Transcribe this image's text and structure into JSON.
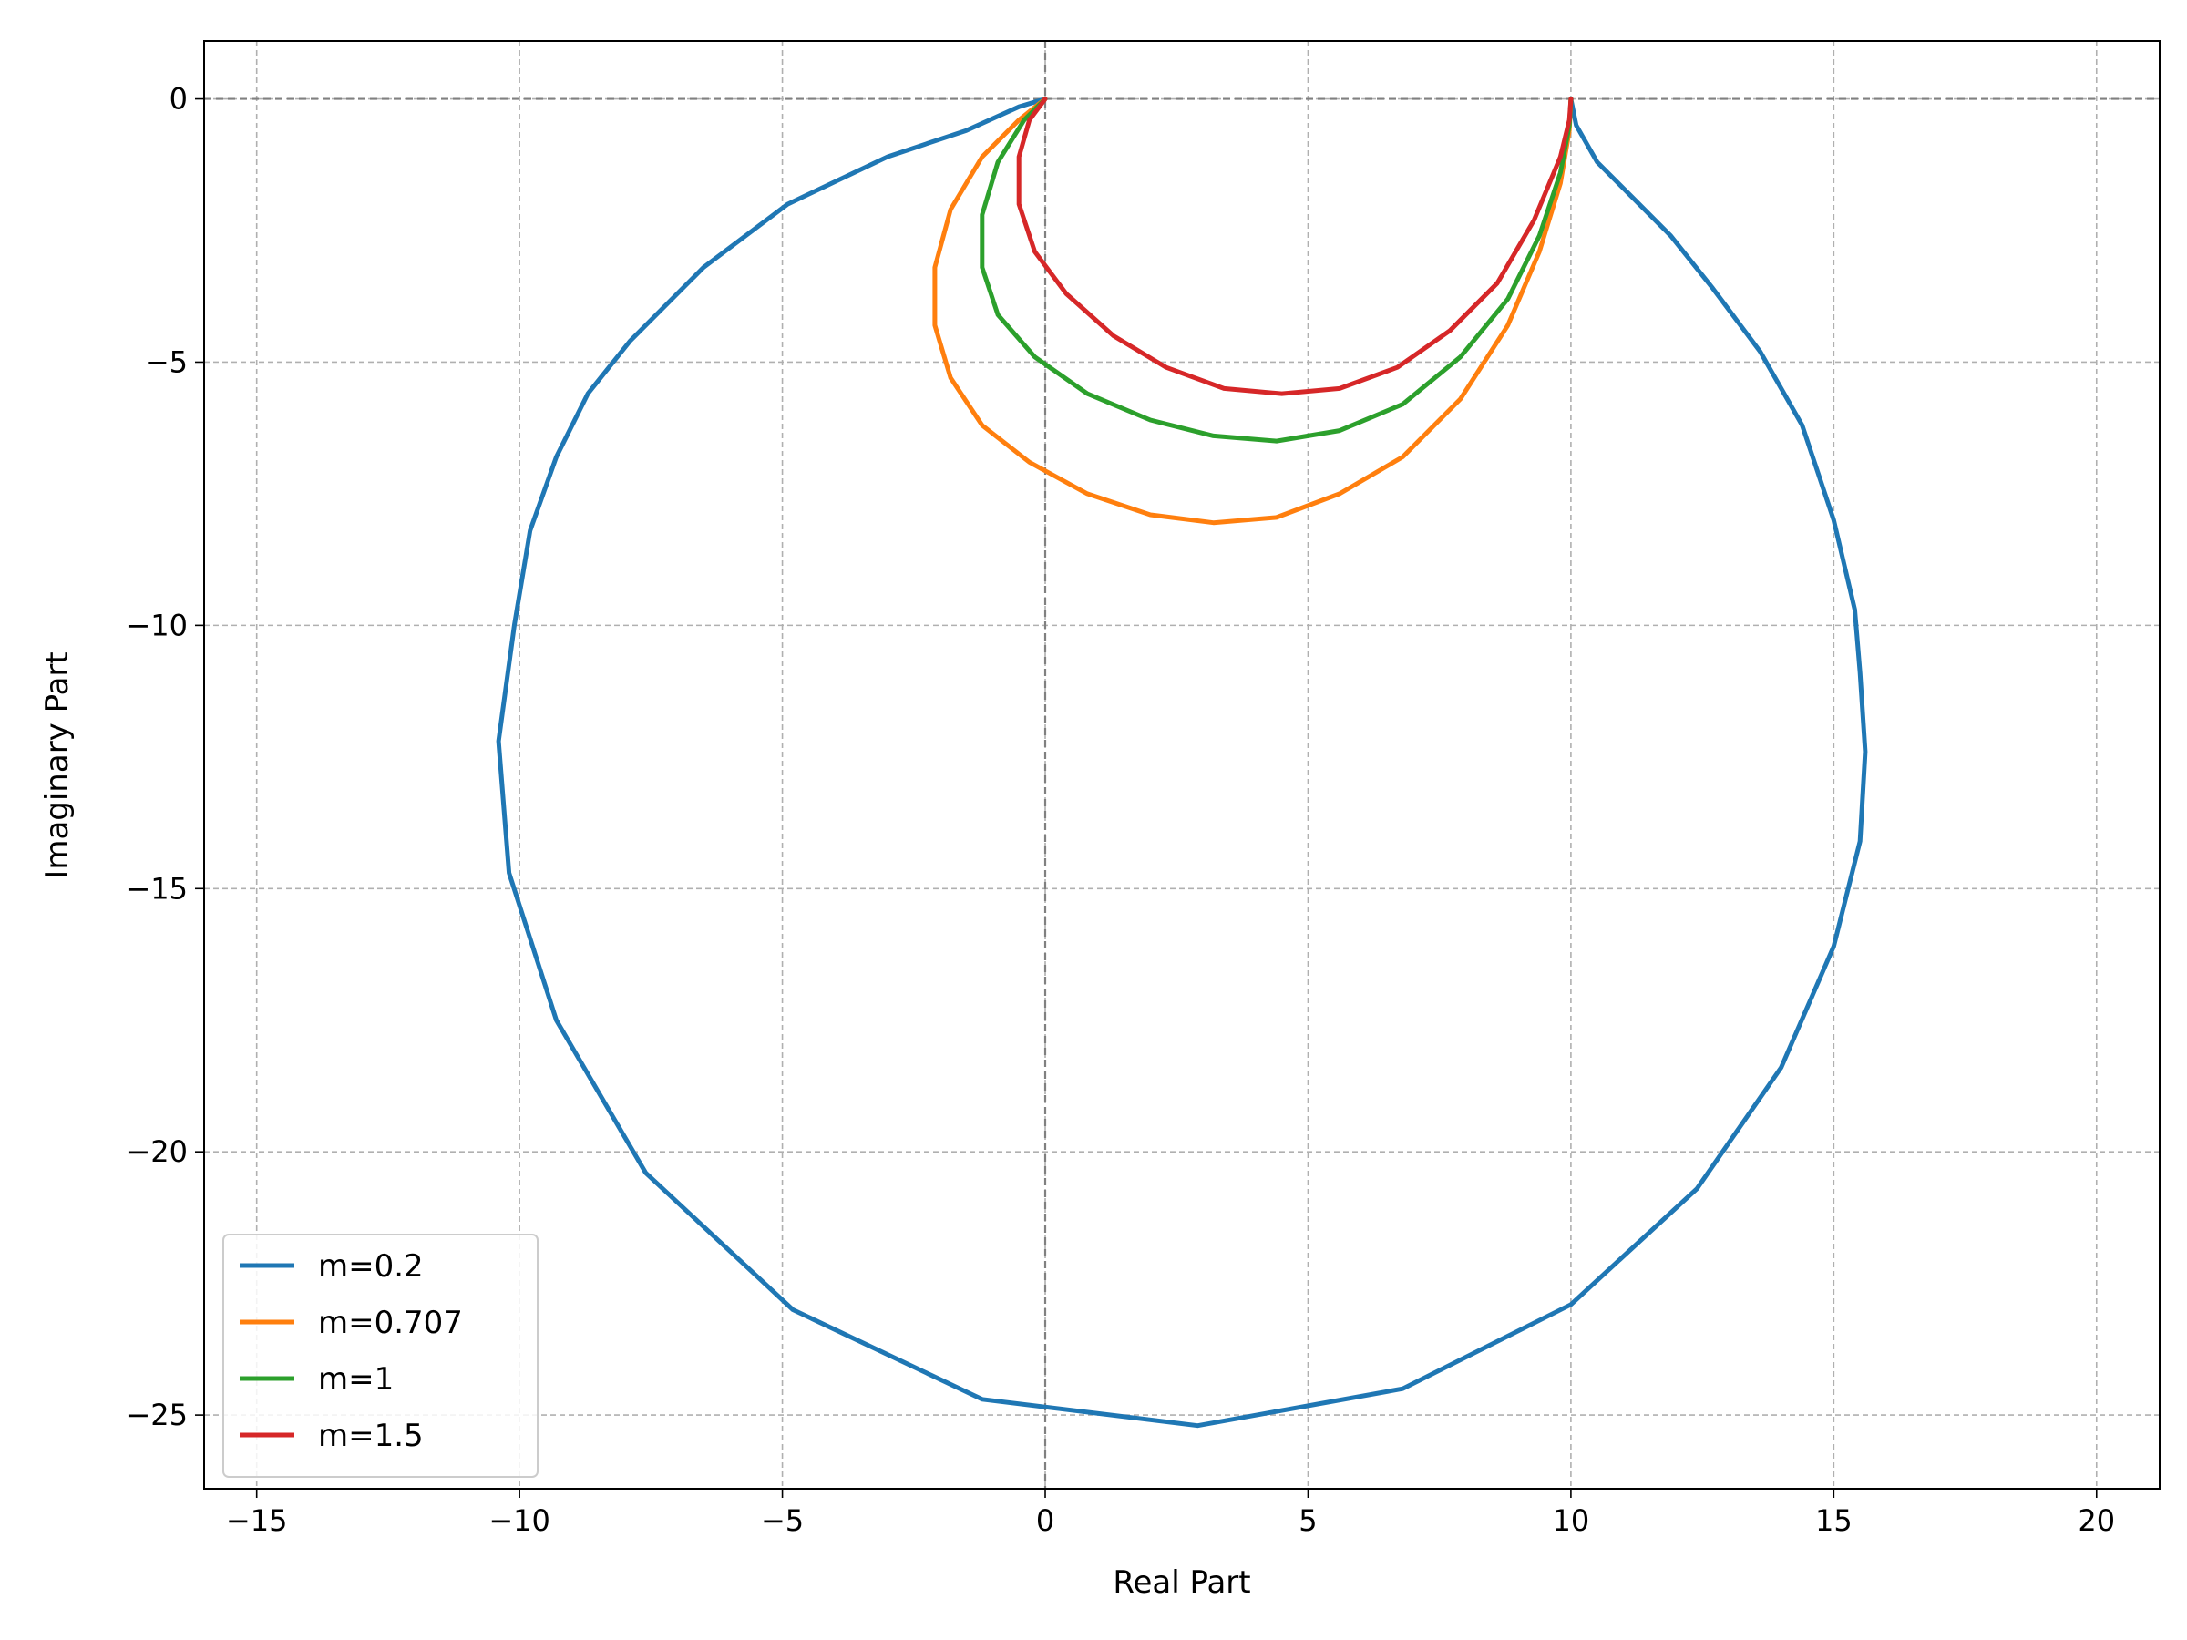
{
  "chart_data": {
    "type": "line",
    "title": "",
    "xlabel": "Real Part",
    "ylabel": "Imaginary Part",
    "xlim": [
      -16.0,
      21.2
    ],
    "ylim": [
      -26.4,
      1.1
    ],
    "xticks": [
      -15,
      -10,
      -5,
      0,
      5,
      10,
      15,
      20
    ],
    "yticks": [
      0,
      -5,
      -10,
      -15,
      -20,
      -25
    ],
    "xtick_labels": [
      "−15",
      "−10",
      "−5",
      "0",
      "5",
      "10",
      "15",
      "20"
    ],
    "ytick_labels": [
      "0",
      "−5",
      "−10",
      "−15",
      "−20",
      "−25"
    ],
    "grid": true,
    "reference_lines": {
      "x": 0,
      "y": 0
    },
    "legend_position": "lower-left",
    "series": [
      {
        "name": "m=0.2",
        "color": "#1f77b4",
        "x": [
          0,
          -0.5,
          -1.5,
          -3.0,
          -4.9,
          -6.5,
          -7.9,
          -8.7,
          -9.3,
          -9.8,
          -10.1,
          -10.4,
          -10.2,
          -9.3,
          -7.6,
          -4.8,
          -1.2,
          2.9,
          6.8,
          10.0,
          12.4,
          14.0,
          15.0,
          15.5,
          15.6,
          15.5,
          15.4,
          15.0,
          14.4,
          13.6,
          12.7,
          11.9,
          11.2,
          10.5,
          10.1,
          10.0
        ],
        "y": [
          0,
          -0.15,
          -0.6,
          -1.1,
          -2.0,
          -3.2,
          -4.6,
          -5.6,
          -6.8,
          -8.2,
          -10.0,
          -12.2,
          -14.7,
          -17.5,
          -20.4,
          -23.0,
          -24.7,
          -25.2,
          -24.5,
          -22.9,
          -20.7,
          -18.4,
          -16.1,
          -14.1,
          -12.4,
          -10.9,
          -9.7,
          -8.0,
          -6.2,
          -4.8,
          -3.6,
          -2.6,
          -1.9,
          -1.2,
          -0.5,
          0
        ]
      },
      {
        "name": "m=0.707",
        "color": "#ff7f0e",
        "x": [
          0,
          -0.5,
          -1.2,
          -1.8,
          -2.1,
          -2.1,
          -1.8,
          -1.2,
          -0.3,
          0.8,
          2.0,
          3.2,
          4.4,
          5.6,
          6.8,
          7.9,
          8.8,
          9.4,
          9.8,
          9.97,
          10.0
        ],
        "y": [
          0,
          -0.4,
          -1.1,
          -2.1,
          -3.2,
          -4.3,
          -5.3,
          -6.2,
          -6.9,
          -7.5,
          -7.9,
          -8.05,
          -7.95,
          -7.5,
          -6.8,
          -5.7,
          -4.3,
          -2.9,
          -1.6,
          -0.6,
          0
        ]
      },
      {
        "name": "m=1",
        "color": "#2ca02c",
        "x": [
          0,
          -0.4,
          -0.9,
          -1.2,
          -1.2,
          -0.9,
          -0.2,
          0.8,
          2.0,
          3.2,
          4.4,
          5.6,
          6.8,
          7.9,
          8.8,
          9.4,
          9.8,
          9.97,
          10.0
        ],
        "y": [
          0,
          -0.4,
          -1.2,
          -2.2,
          -3.2,
          -4.1,
          -4.9,
          -5.6,
          -6.1,
          -6.4,
          -6.5,
          -6.3,
          -5.8,
          -4.9,
          -3.8,
          -2.6,
          -1.4,
          -0.5,
          0
        ]
      },
      {
        "name": "m=1.5",
        "color": "#d62728",
        "x": [
          0,
          -0.3,
          -0.5,
          -0.5,
          -0.2,
          0.4,
          1.3,
          2.3,
          3.4,
          4.5,
          5.6,
          6.7,
          7.7,
          8.6,
          9.3,
          9.8,
          9.97,
          10.0
        ],
        "y": [
          0,
          -0.4,
          -1.1,
          -2.0,
          -2.9,
          -3.7,
          -4.5,
          -5.1,
          -5.5,
          -5.6,
          -5.5,
          -5.1,
          -4.4,
          -3.5,
          -2.3,
          -1.1,
          -0.4,
          0
        ]
      }
    ]
  }
}
